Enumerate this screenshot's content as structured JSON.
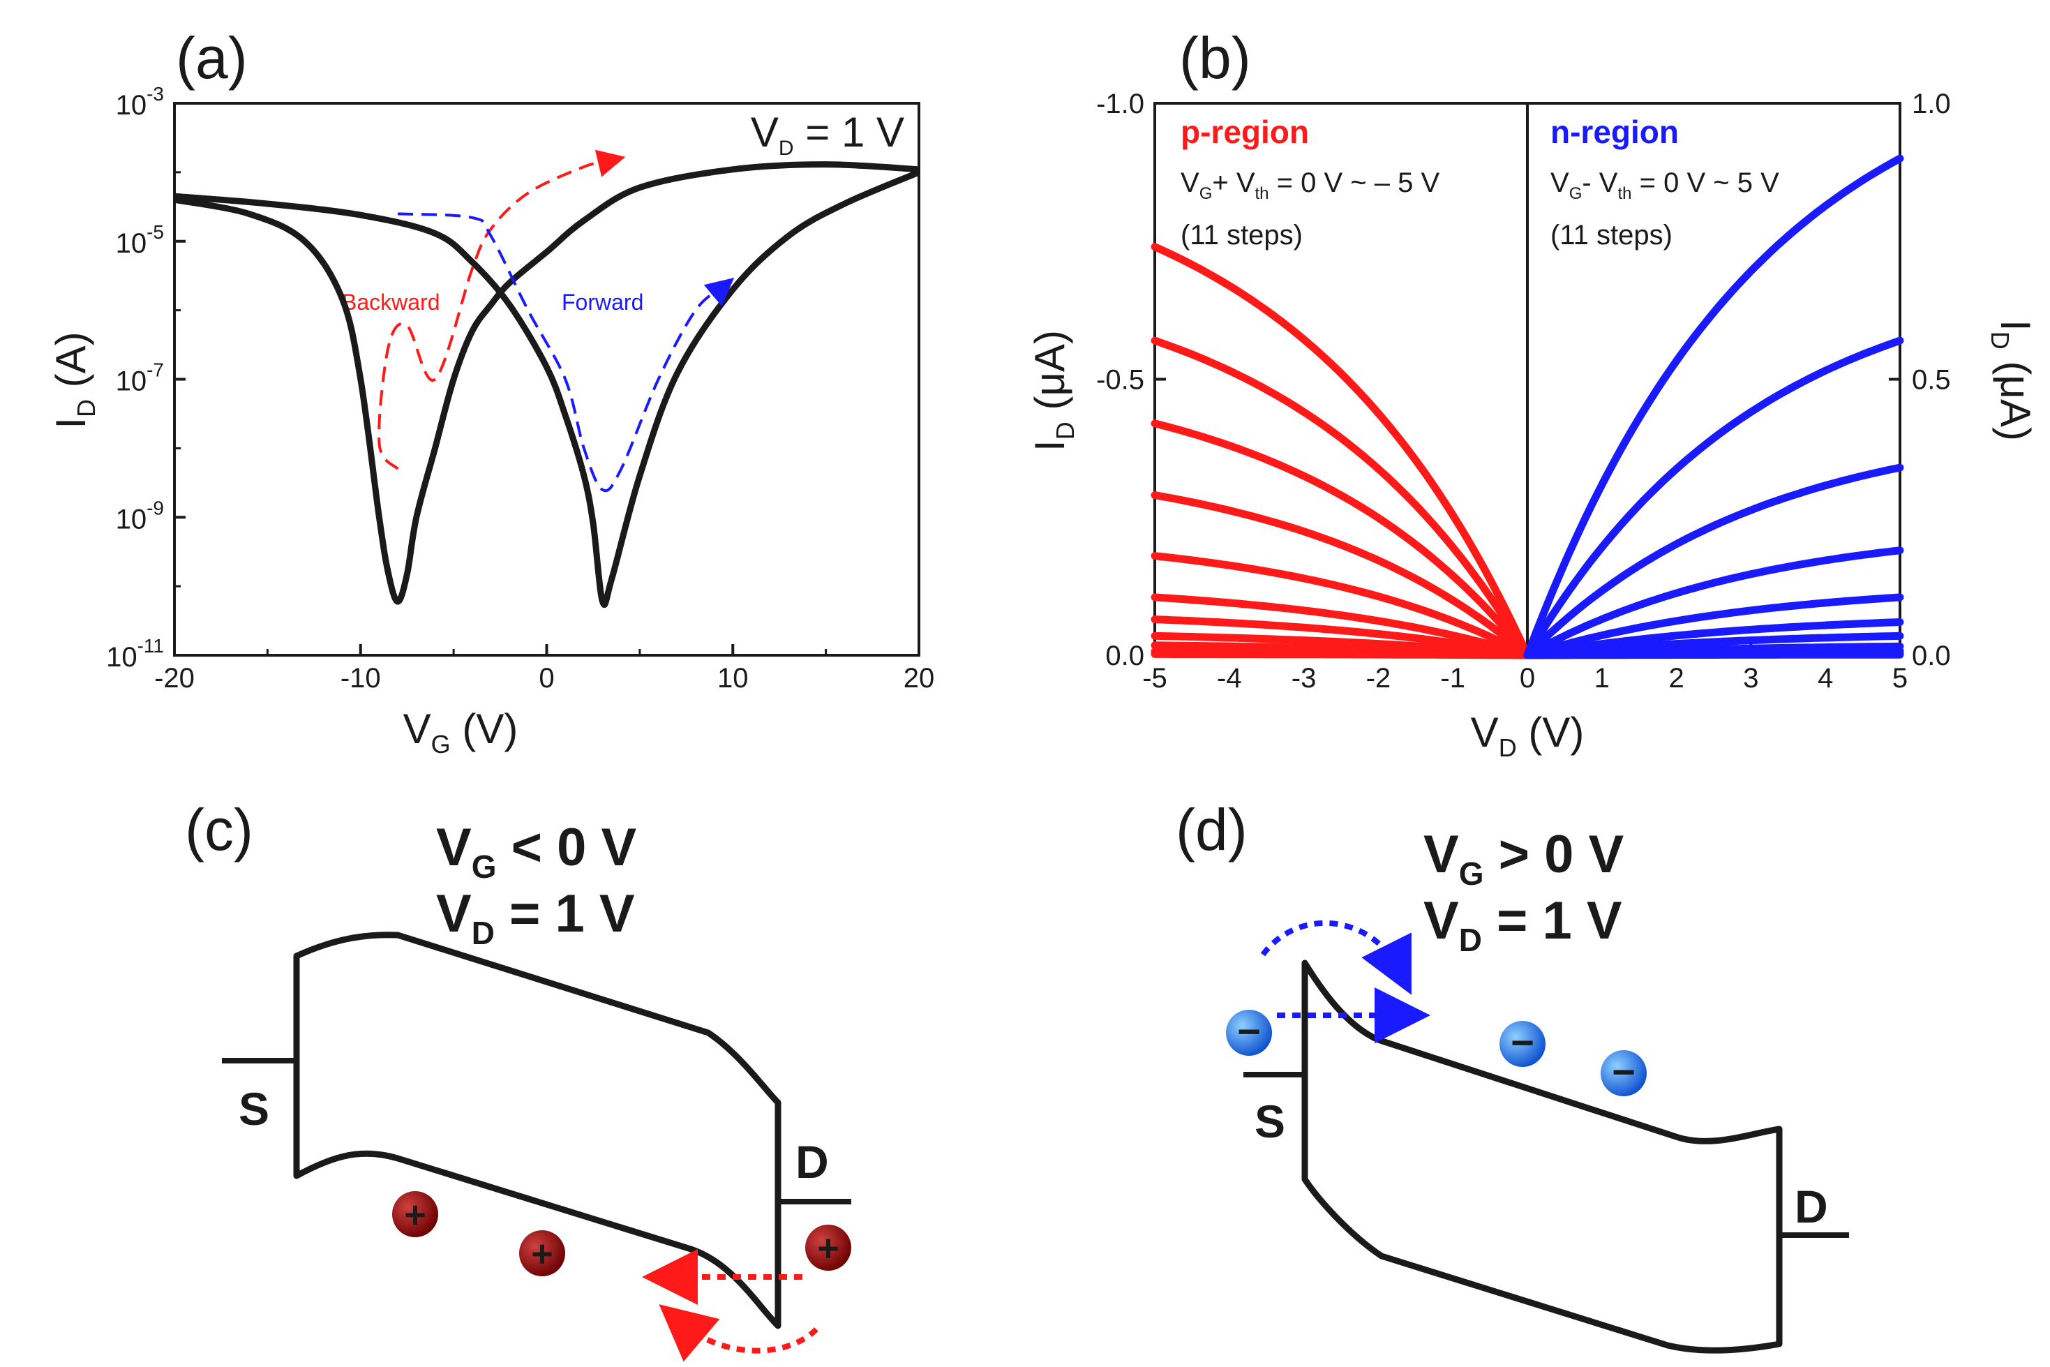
{
  "colors": {
    "black": "#1a1a1a",
    "red": "#ff1a1a",
    "blue": "#1a1aff",
    "hole": "#8b0000",
    "electron": "#1565e0"
  },
  "panels": {
    "a": "(a)",
    "b": "(b)",
    "c": "(c)",
    "d": "(d)"
  },
  "chart_data": [
    {
      "type": "line",
      "panel": "(a)",
      "xlabel": "V_G (V)",
      "ylabel": "I_D (A)",
      "xlim": [
        -20,
        20
      ],
      "ylim_log10": [
        -11,
        -3
      ],
      "x_ticks": [
        "-20",
        "-10",
        "0",
        "10",
        "20"
      ],
      "y_ticks": [
        {
          "base": "10",
          "exp": "-3"
        },
        {
          "base": "10",
          "exp": "-5"
        },
        {
          "base": "10",
          "exp": "-7"
        },
        {
          "base": "10",
          "exp": "-9"
        },
        {
          "base": "10",
          "exp": "-11"
        }
      ],
      "annotation": "V_D = 1 V",
      "series": [
        {
          "name": "Backward sweep",
          "points": [
            [
              -20,
              4e-05
            ],
            [
              -16,
              2.5e-05
            ],
            [
              -13,
              1e-05
            ],
            [
              -11,
              1.5e-06
            ],
            [
              -10,
              1e-07
            ],
            [
              -9,
              1e-09
            ],
            [
              -8.5,
              1.5e-10
            ],
            [
              -8,
              6e-11
            ],
            [
              -7.5,
              1.5e-10
            ],
            [
              -7,
              1e-09
            ],
            [
              -6,
              1e-08
            ],
            [
              -5,
              1e-07
            ],
            [
              -4,
              5e-07
            ],
            [
              -3,
              1.2e-06
            ],
            [
              -2,
              2.5e-06
            ],
            [
              0,
              7e-06
            ],
            [
              2,
              2e-05
            ],
            [
              5,
              6e-05
            ],
            [
              10,
              0.00011
            ],
            [
              15,
              0.00013
            ],
            [
              20,
              0.00011
            ]
          ]
        },
        {
          "name": "Forward sweep",
          "points": [
            [
              -20,
              4.5e-05
            ],
            [
              -15,
              3.5e-05
            ],
            [
              -10,
              2.4e-05
            ],
            [
              -6,
              1.3e-05
            ],
            [
              -4,
              5e-06
            ],
            [
              -2,
              1.2e-06
            ],
            [
              0,
              1.5e-07
            ],
            [
              1,
              3e-08
            ],
            [
              2,
              4e-09
            ],
            [
              2.5,
              8e-10
            ],
            [
              3,
              6e-11
            ],
            [
              3.5,
              1.3e-10
            ],
            [
              5,
              4e-09
            ],
            [
              7,
              1.2e-07
            ],
            [
              10,
              2e-06
            ],
            [
              13,
              1.2e-05
            ],
            [
              16,
              3.5e-05
            ],
            [
              20,
              0.0001
            ]
          ]
        }
      ],
      "arrows": [
        {
          "label": "Backward",
          "color": "red",
          "points": [
            [
              -8,
              5e-09
            ],
            [
              -9,
              1.2e-08
            ],
            [
              -8.5,
              3e-07
            ],
            [
              -7.5,
              6e-07
            ],
            [
              -6,
              1e-07
            ],
            [
              -4,
              4e-06
            ],
            [
              -3,
              1.5e-05
            ],
            [
              -1,
              5e-05
            ],
            [
              2,
              0.00012
            ],
            [
              3.5,
              0.00015
            ]
          ]
        },
        {
          "label": "Forward",
          "color": "blue",
          "points": [
            [
              -8,
              2.5e-05
            ],
            [
              -4,
              2.2e-05
            ],
            [
              -3,
              1.2e-05
            ],
            [
              -1,
              1e-06
            ],
            [
              1,
              1e-07
            ],
            [
              2,
              1e-08
            ],
            [
              3,
              2.5e-09
            ],
            [
              4,
              5e-09
            ],
            [
              6,
              1e-07
            ],
            [
              8,
              1e-06
            ],
            [
              9.5,
              2.2e-06
            ]
          ]
        }
      ]
    },
    {
      "type": "line",
      "panel": "(b)",
      "xlabel": "V_D (V)",
      "ylabel_left": "I_D (μA)",
      "ylabel_right": "I_D (μA)",
      "xlim": [
        -5,
        5
      ],
      "ylim_left": [
        0,
        -1
      ],
      "ylim_right": [
        0,
        1
      ],
      "x_ticks": [
        "-5",
        "-4",
        "-3",
        "-2",
        "-1",
        "0",
        "1",
        "2",
        "3",
        "4",
        "5"
      ],
      "y_ticks_left": [
        "-1.0",
        "-0.5",
        "0.0"
      ],
      "y_ticks_right": [
        "1.0",
        "0.5",
        "0.0"
      ],
      "p_region": {
        "title": "p-region",
        "condition": "V_G + V_th = 0 V ~ – 5 V",
        "steps": "(11 steps)",
        "endpoint_values_at_minus5V": [
          0.74,
          0.57,
          0.42,
          0.29,
          0.18,
          0.105,
          0.065,
          0.035,
          0.018,
          0.007,
          0.002
        ]
      },
      "n_region": {
        "title": "n-region",
        "condition": "V_G - V_th = 0 V ~ 5 V",
        "steps": "(11 steps)",
        "endpoint_values_at_5V": [
          0.9,
          0.57,
          0.34,
          0.19,
          0.105,
          0.06,
          0.035,
          0.016,
          0.008,
          0.003,
          0.001
        ]
      }
    }
  ],
  "panel_c": {
    "line1": "V_G < 0 V",
    "line2": "V_D = 1 V",
    "source": "S",
    "drain": "D",
    "carrier": "+",
    "carrier_count": 3
  },
  "panel_d": {
    "line1": "V_G > 0 V",
    "line2": "V_D = 1 V",
    "source": "S",
    "drain": "D",
    "carrier": "−",
    "carrier_count": 3
  }
}
